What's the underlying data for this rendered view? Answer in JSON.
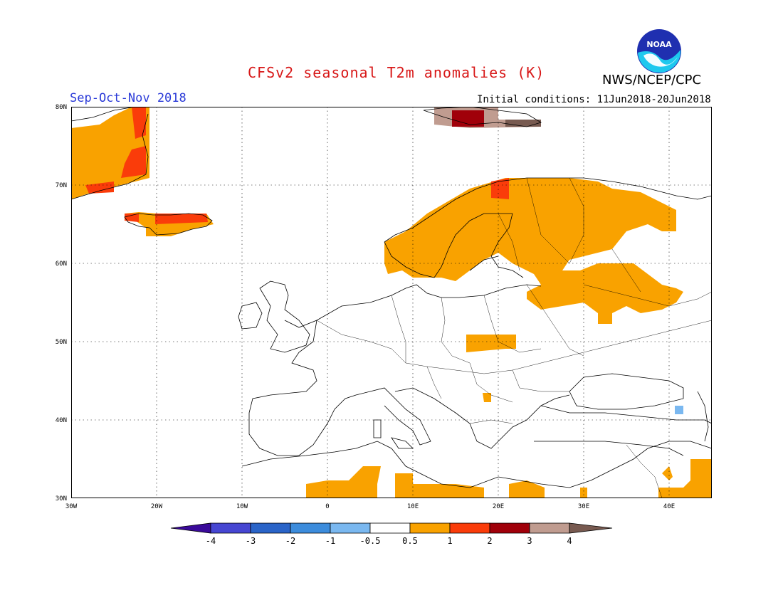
{
  "header": {
    "title": "CFSv2 seasonal T2m anomalies (K)",
    "agency": "NWS/NCEP/CPC",
    "season": "Sep-Oct-Nov 2018",
    "initial_conditions": "Initial conditions: 11Jun2018-20Jun2018",
    "logo_text": "NOAA"
  },
  "map": {
    "lon_ticks": [
      "30W",
      "20W",
      "10W",
      "0",
      "10E",
      "20E",
      "30E",
      "40E"
    ],
    "lat_ticks": [
      "80N",
      "70N",
      "60N",
      "50N",
      "40N",
      "30N"
    ],
    "colors": {
      "orange": "#f9a200",
      "red_orange": "#fa3c0a",
      "dark_red": "#a0000a",
      "tan": "#c09c90",
      "brown": "#785a50",
      "light_blue": "#7ab8f0"
    }
  },
  "colorbar": {
    "labels": [
      "-4",
      "-3",
      "-2",
      "-1",
      "-0.5",
      "0.5",
      "1",
      "2",
      "3",
      "4"
    ],
    "colors": [
      "#3a0a9a",
      "#4646d2",
      "#2a64c8",
      "#3c8cdc",
      "#7ab8f0",
      "#ffffff",
      "#f9a200",
      "#fa3c0a",
      "#a0000a",
      "#c09c90",
      "#785a50"
    ]
  }
}
